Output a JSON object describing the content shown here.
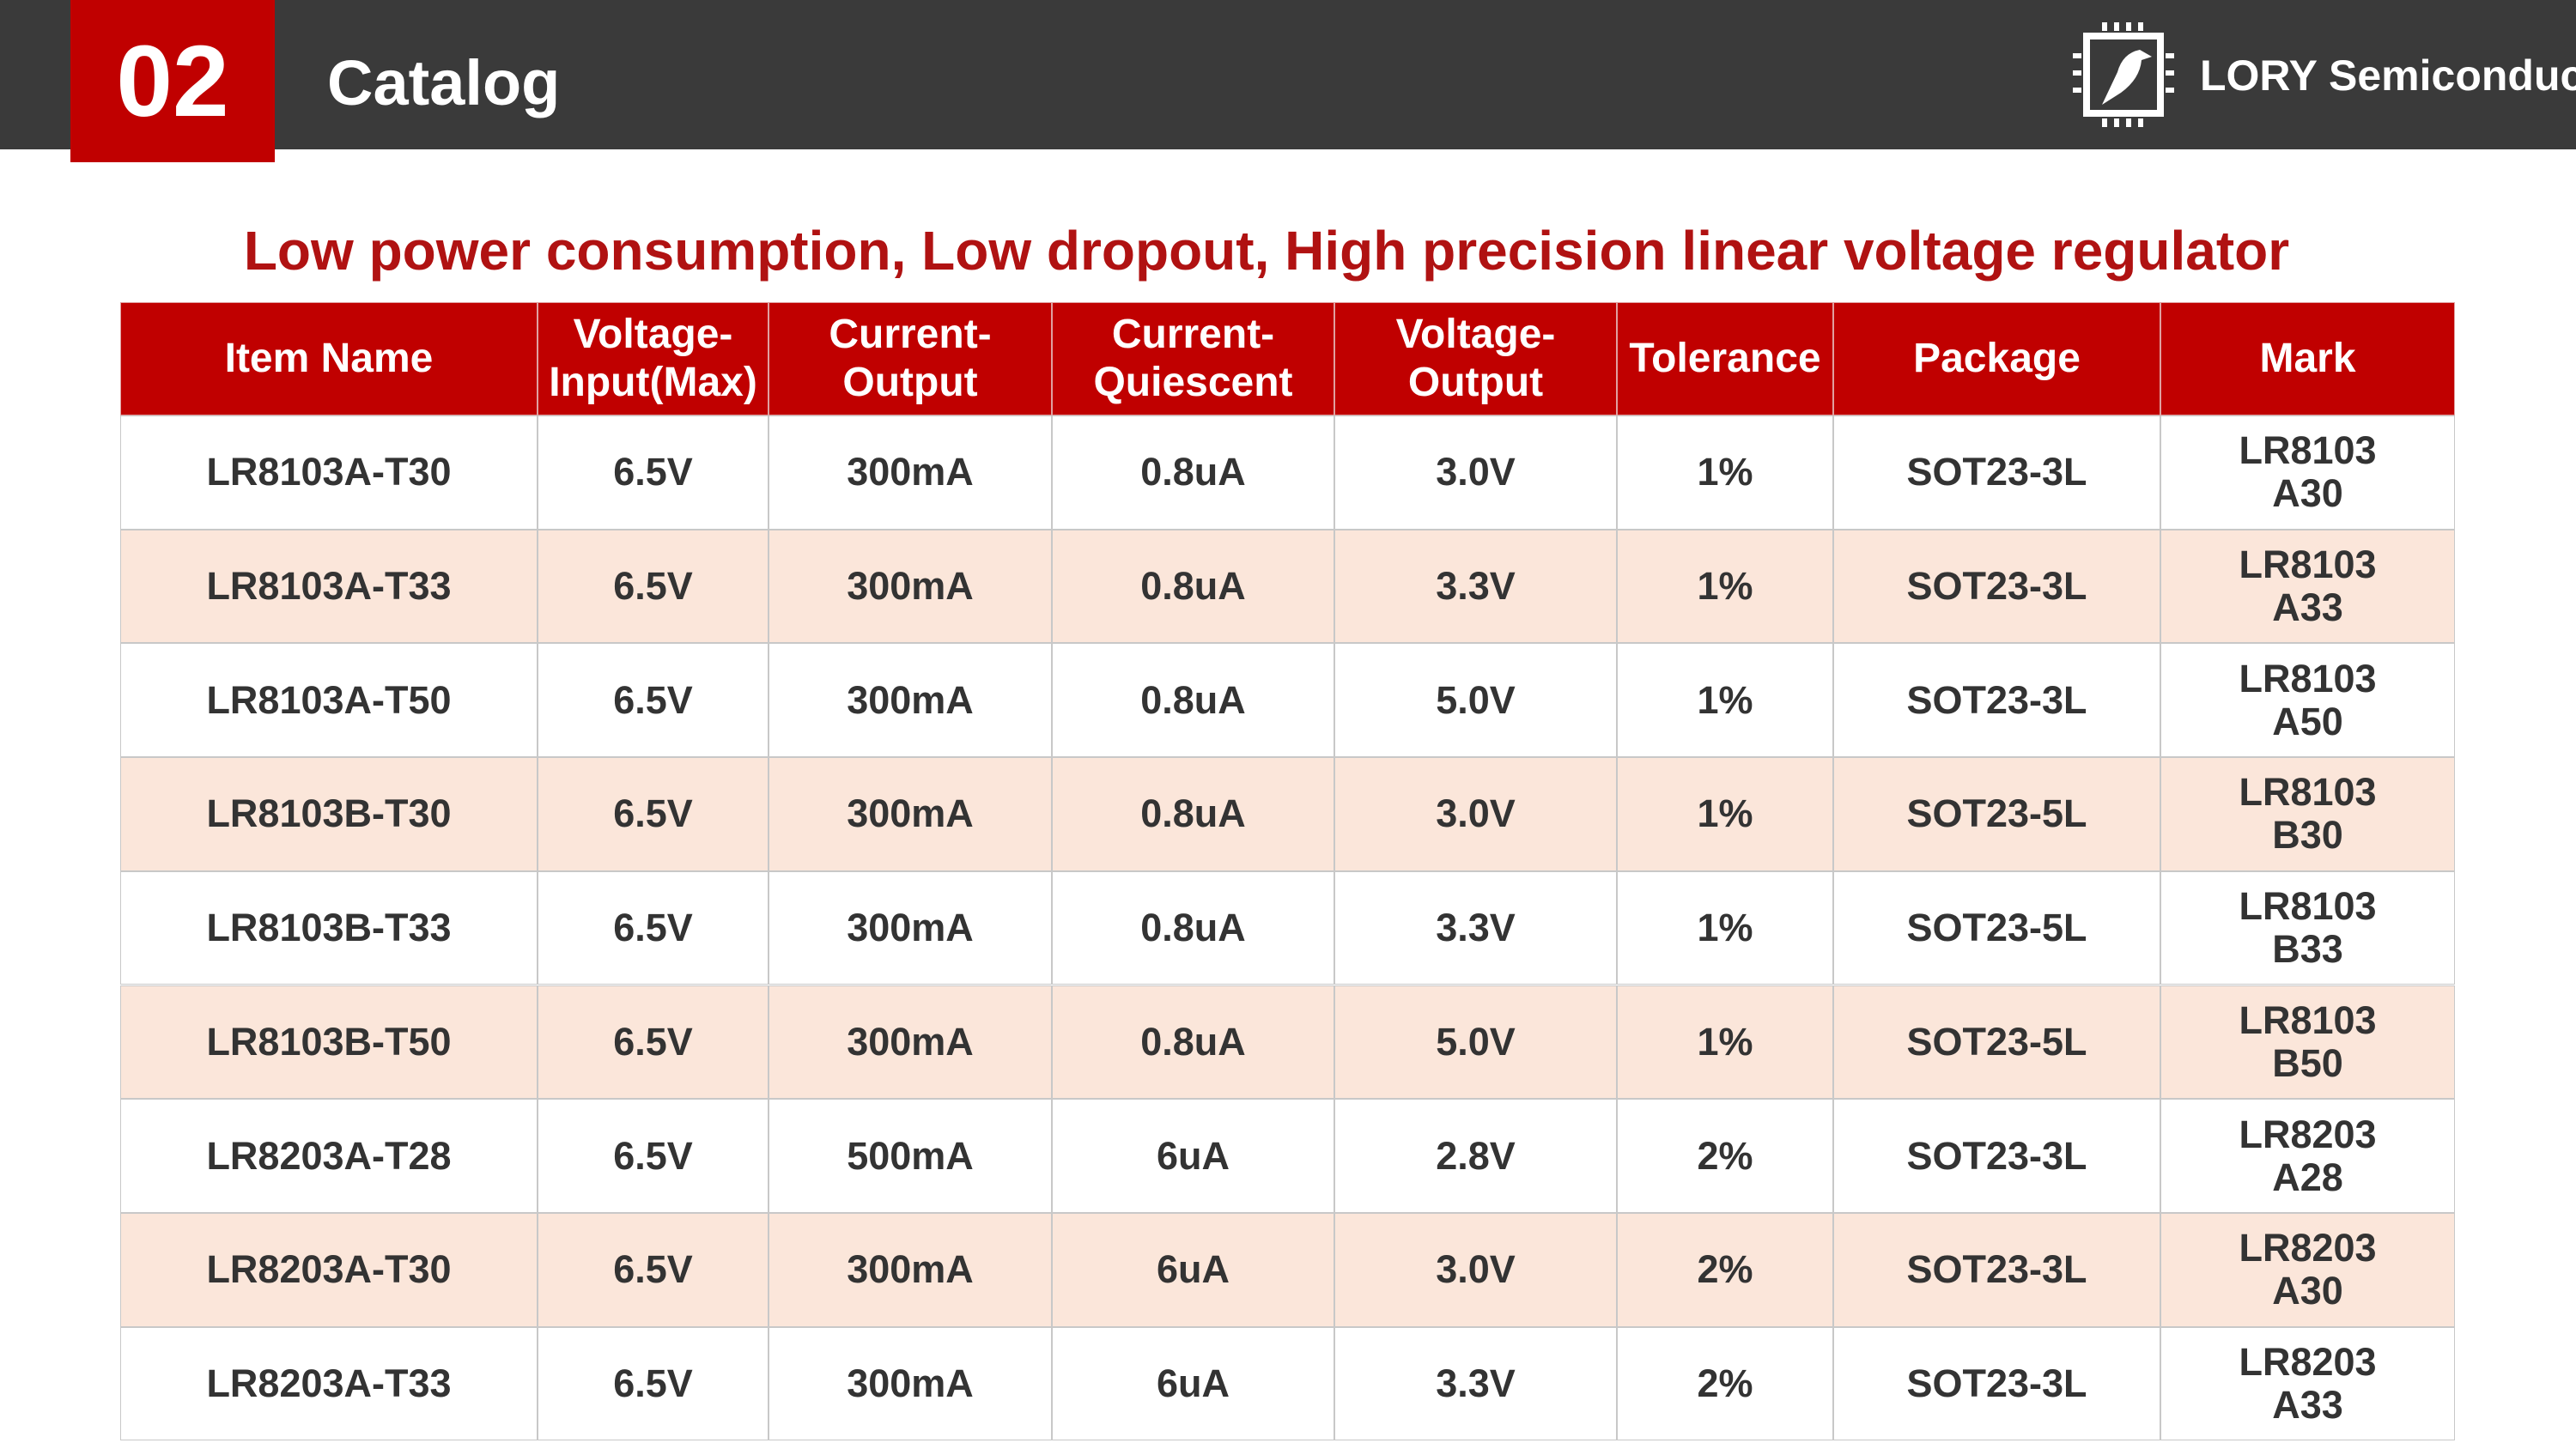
{
  "header": {
    "number": "02",
    "title": "Catalog",
    "brand": "LORY Semiconductor"
  },
  "subtitle": "Low power consumption, Low dropout, High precision linear voltage regulator",
  "table": {
    "columns": [
      [
        "Item Name"
      ],
      [
        "Voltage-",
        "Input(Max)"
      ],
      [
        "Current-",
        "Output"
      ],
      [
        "Current-",
        "Quiescent"
      ],
      [
        "Voltage-",
        "Output"
      ],
      [
        "Tolerance"
      ],
      [
        "Package"
      ],
      [
        "Mark"
      ]
    ],
    "rows": [
      {
        "cells": [
          "LR8103A-T30",
          "6.5V",
          "300mA",
          "0.8uA",
          "3.0V",
          "1%",
          "SOT23-3L"
        ],
        "mark": [
          "LR8103",
          "A30"
        ]
      },
      {
        "cells": [
          "LR8103A-T33",
          "6.5V",
          "300mA",
          "0.8uA",
          "3.3V",
          "1%",
          "SOT23-3L"
        ],
        "mark": [
          "LR8103",
          "A33"
        ]
      },
      {
        "cells": [
          "LR8103A-T50",
          "6.5V",
          "300mA",
          "0.8uA",
          "5.0V",
          "1%",
          "SOT23-3L"
        ],
        "mark": [
          "LR8103",
          "A50"
        ]
      },
      {
        "cells": [
          "LR8103B-T30",
          "6.5V",
          "300mA",
          "0.8uA",
          "3.0V",
          "1%",
          "SOT23-5L"
        ],
        "mark": [
          "LR8103",
          "B30"
        ]
      },
      {
        "cells": [
          "LR8103B-T33",
          "6.5V",
          "300mA",
          "0.8uA",
          "3.3V",
          "1%",
          "SOT23-5L"
        ],
        "mark": [
          "LR8103",
          "B33"
        ]
      },
      {
        "cells": [
          "LR8103B-T50",
          "6.5V",
          "300mA",
          "0.8uA",
          "5.0V",
          "1%",
          "SOT23-5L"
        ],
        "mark": [
          "LR8103",
          "B50"
        ]
      },
      {
        "cells": [
          "LR8203A-T28",
          "6.5V",
          "500mA",
          "6uA",
          "2.8V",
          "2%",
          "SOT23-3L"
        ],
        "mark": [
          "LR8203",
          "A28"
        ]
      },
      {
        "cells": [
          "LR8203A-T30",
          "6.5V",
          "300mA",
          "6uA",
          "3.0V",
          "2%",
          "SOT23-3L"
        ],
        "mark": [
          "LR8203",
          "A30"
        ]
      },
      {
        "cells": [
          "LR8203A-T33",
          "6.5V",
          "300mA",
          "6uA",
          "3.3V",
          "2%",
          "SOT23-3L"
        ],
        "mark": [
          "LR8203",
          "A33"
        ]
      }
    ]
  }
}
